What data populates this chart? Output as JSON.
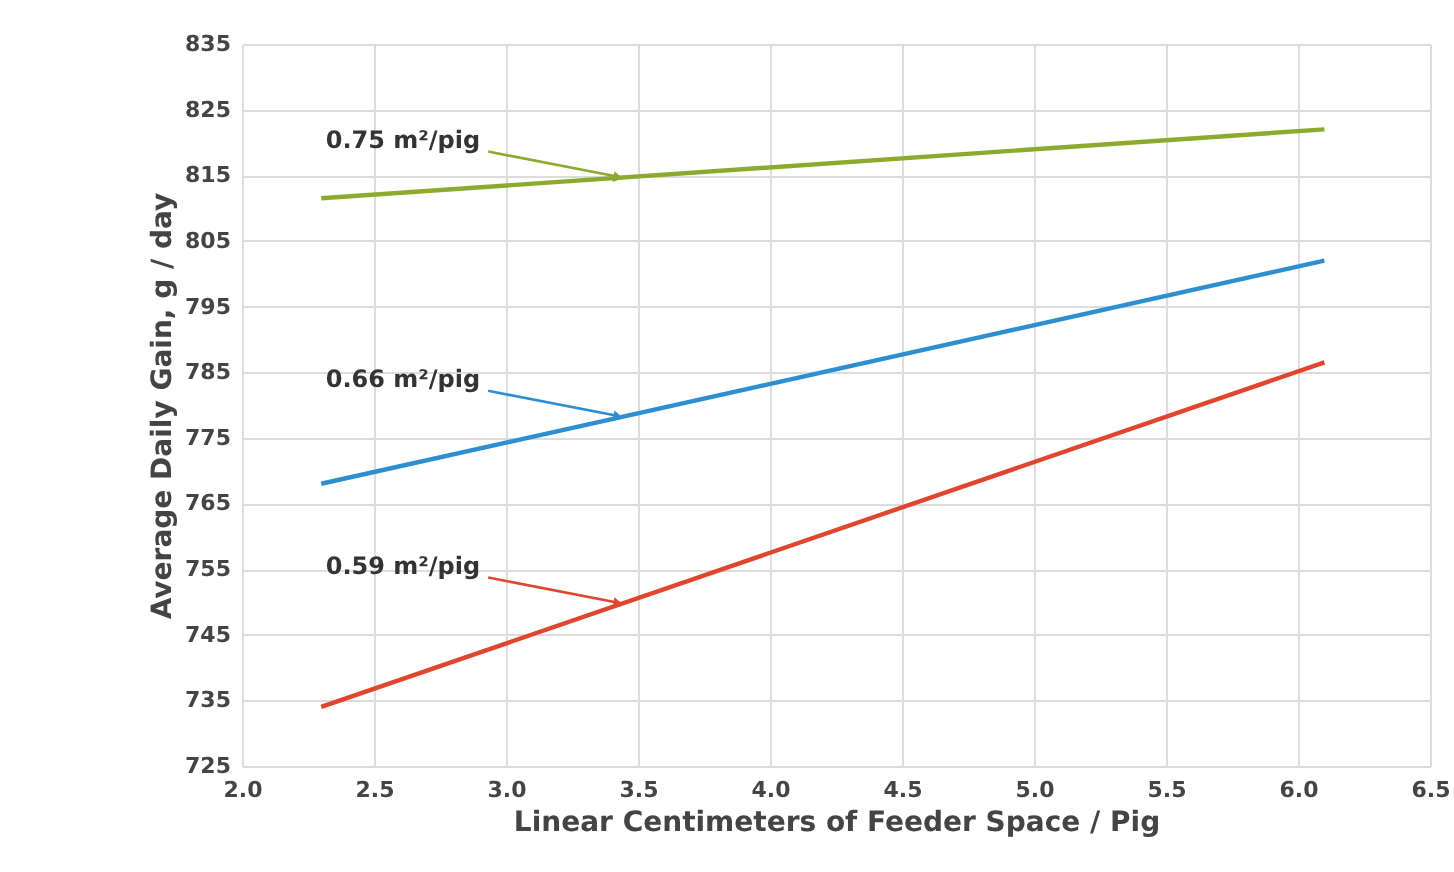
{
  "chart_data": {
    "type": "line",
    "xlabel": "Linear Centimeters of Feeder Space / Pig",
    "ylabel": "Average Daily Gain, g / day",
    "x": [
      2.3,
      6.1
    ],
    "series": [
      {
        "name": "0.75 m²/pig",
        "color": "#8aab2e",
        "values": [
          811.5,
          822
        ]
      },
      {
        "name": "0.66 m²/pig",
        "color": "#2e8fd0",
        "values": [
          768,
          802
        ]
      },
      {
        "name": "0.59 m²/pig",
        "color": "#e0452e",
        "values": [
          734,
          786.5
        ]
      }
    ],
    "xlim": [
      2.0,
      6.5
    ],
    "xticks": [
      {
        "value": 2,
        "label": "2.0"
      },
      2.5,
      {
        "value": 3,
        "label": "3.0"
      },
      3.5,
      {
        "value": 4,
        "label": "4.0"
      },
      4.5,
      {
        "value": 5,
        "label": "5.0"
      },
      5.5,
      {
        "value": 6,
        "label": "6.0"
      },
      6.5
    ],
    "ylim": [
      725,
      835
    ],
    "yticks": [
      725,
      735,
      745,
      755,
      765,
      775,
      785,
      795,
      805,
      815,
      825,
      835
    ],
    "grid": true,
    "marker": "none",
    "line_style": "solid"
  }
}
